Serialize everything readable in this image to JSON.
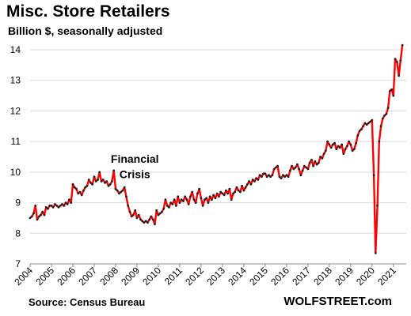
{
  "header": {
    "title": "Misc. Store Retailers",
    "subtitle": "Billion $, seasonally adjusted"
  },
  "footer": {
    "source": "Source: Census Bureau",
    "brand": "WOLFSTREET.com"
  },
  "colors": {
    "line": "#ff0000",
    "marker": "#222222",
    "grid": "#d9d9d9",
    "axis": "#888888"
  },
  "chart_data": {
    "type": "line",
    "title": "Misc. Store Retailers",
    "ylabel": "Billion $, seasonally adjusted",
    "xlabel": "",
    "ylim": [
      7,
      14
    ],
    "yticks": [
      7,
      8,
      9,
      10,
      11,
      12,
      13,
      14
    ],
    "xlim": [
      2004,
      2021.6
    ],
    "xticks": [
      "2004",
      "2005",
      "2006",
      "2007",
      "2008",
      "2009",
      "2010",
      "2011",
      "2012",
      "2013",
      "2014",
      "2015",
      "2016",
      "2017",
      "2018",
      "2019",
      "2020",
      "2021"
    ],
    "grid": "horizontal",
    "annotations": [
      {
        "text": "Financial",
        "x": 2008.9,
        "y": 10.3
      },
      {
        "text": "Crisis",
        "x": 2008.9,
        "y": 9.8
      }
    ],
    "series": [
      {
        "x": [
          2004.0,
          2004.083,
          2004.167,
          2004.25,
          2004.333,
          2004.417,
          2004.5,
          2004.583,
          2004.667,
          2004.75,
          2004.833,
          2004.917,
          2005.0,
          2005.083,
          2005.167,
          2005.25,
          2005.333,
          2005.417,
          2005.5,
          2005.583,
          2005.667,
          2005.75,
          2005.833,
          2005.917,
          2006.0,
          2006.083,
          2006.167,
          2006.25,
          2006.333,
          2006.417,
          2006.5,
          2006.583,
          2006.667,
          2006.75,
          2006.833,
          2006.917,
          2007.0,
          2007.083,
          2007.167,
          2007.25,
          2007.333,
          2007.417,
          2007.5,
          2007.583,
          2007.667,
          2007.75,
          2007.833,
          2007.917,
          2008.0,
          2008.083,
          2008.167,
          2008.25,
          2008.333,
          2008.417,
          2008.5,
          2008.583,
          2008.667,
          2008.75,
          2008.833,
          2008.917,
          2009.0,
          2009.083,
          2009.167,
          2009.25,
          2009.333,
          2009.417,
          2009.5,
          2009.583,
          2009.667,
          2009.75,
          2009.833,
          2009.917,
          2010.0,
          2010.083,
          2010.167,
          2010.25,
          2010.333,
          2010.417,
          2010.5,
          2010.583,
          2010.667,
          2010.75,
          2010.833,
          2010.917,
          2011.0,
          2011.083,
          2011.167,
          2011.25,
          2011.333,
          2011.417,
          2011.5,
          2011.583,
          2011.667,
          2011.75,
          2011.833,
          2011.917,
          2012.0,
          2012.083,
          2012.167,
          2012.25,
          2012.333,
          2012.417,
          2012.5,
          2012.583,
          2012.667,
          2012.75,
          2012.833,
          2012.917,
          2013.0,
          2013.083,
          2013.167,
          2013.25,
          2013.333,
          2013.417,
          2013.5,
          2013.583,
          2013.667,
          2013.75,
          2013.833,
          2013.917,
          2014.0,
          2014.083,
          2014.167,
          2014.25,
          2014.333,
          2014.417,
          2014.5,
          2014.583,
          2014.667,
          2014.75,
          2014.833,
          2014.917,
          2015.0,
          2015.083,
          2015.167,
          2015.25,
          2015.333,
          2015.417,
          2015.5,
          2015.583,
          2015.667,
          2015.75,
          2015.833,
          2015.917,
          2016.0,
          2016.083,
          2016.167,
          2016.25,
          2016.333,
          2016.417,
          2016.5,
          2016.583,
          2016.667,
          2016.75,
          2016.833,
          2016.917,
          2017.0,
          2017.083,
          2017.167,
          2017.25,
          2017.333,
          2017.417,
          2017.5,
          2017.583,
          2017.667,
          2017.75,
          2017.833,
          2017.917,
          2018.0,
          2018.083,
          2018.167,
          2018.25,
          2018.333,
          2018.417,
          2018.5,
          2018.583,
          2018.667,
          2018.75,
          2018.833,
          2018.917,
          2019.0,
          2019.083,
          2019.167,
          2019.25,
          2019.333,
          2019.417,
          2019.5,
          2019.583,
          2019.667,
          2019.75,
          2019.833,
          2019.917,
          2020.0,
          2020.083,
          2020.167,
          2020.25,
          2020.333,
          2020.417,
          2020.5,
          2020.583,
          2020.667,
          2020.75,
          2020.833,
          2020.917,
          2021.0,
          2021.083,
          2021.167,
          2021.25,
          2021.333,
          2021.417
        ],
        "y": [
          8.5,
          8.55,
          8.65,
          8.9,
          8.45,
          8.55,
          8.6,
          8.7,
          8.6,
          8.85,
          8.8,
          8.9,
          8.9,
          8.85,
          8.95,
          8.9,
          8.85,
          8.9,
          8.95,
          8.9,
          9.0,
          8.95,
          9.1,
          9.0,
          9.6,
          9.5,
          9.45,
          9.3,
          9.35,
          9.25,
          9.4,
          9.5,
          9.55,
          9.75,
          9.65,
          9.6,
          9.85,
          9.7,
          9.75,
          10.0,
          9.7,
          9.75,
          9.65,
          9.7,
          9.55,
          9.6,
          9.7,
          10.05,
          9.45,
          9.4,
          9.3,
          9.35,
          9.4,
          9.5,
          9.2,
          8.9,
          8.7,
          8.55,
          8.6,
          8.75,
          8.5,
          8.6,
          8.45,
          8.4,
          8.35,
          8.4,
          8.35,
          8.45,
          8.55,
          8.45,
          8.3,
          8.75,
          8.6,
          8.65,
          8.7,
          8.8,
          9.1,
          8.9,
          8.85,
          9.0,
          8.95,
          9.1,
          8.9,
          9.2,
          9.0,
          9.1,
          9.05,
          9.2,
          9.1,
          8.95,
          9.2,
          9.35,
          9.1,
          9.0,
          9.3,
          9.45,
          9.15,
          8.9,
          9.1,
          9.15,
          9.0,
          9.2,
          9.1,
          9.25,
          9.15,
          9.3,
          9.2,
          9.35,
          9.3,
          9.25,
          9.4,
          9.3,
          9.45,
          9.1,
          9.3,
          9.35,
          9.5,
          9.4,
          9.35,
          9.55,
          9.4,
          9.5,
          9.6,
          9.7,
          9.6,
          9.75,
          9.7,
          9.8,
          9.75,
          9.9,
          9.85,
          9.95,
          9.95,
          9.85,
          9.9,
          9.85,
          9.9,
          10.1,
          10.15,
          10.2,
          9.85,
          9.8,
          9.9,
          9.85,
          9.9,
          9.85,
          10.05,
          10.2,
          10.1,
          10.15,
          10.25,
          10.1,
          9.9,
          10.05,
          10.2,
          10.15,
          10.1,
          10.3,
          10.4,
          10.2,
          10.35,
          10.25,
          10.3,
          10.5,
          10.45,
          10.6,
          10.7,
          11.0,
          10.9,
          10.8,
          10.9,
          10.95,
          10.75,
          10.85,
          10.8,
          10.9,
          10.6,
          10.75,
          10.85,
          11.0,
          10.9,
          10.7,
          10.75,
          10.95,
          11.2,
          11.35,
          11.4,
          11.5,
          11.6,
          11.55,
          11.6,
          11.65,
          11.7,
          9.9,
          7.35,
          8.9,
          11.0,
          11.5,
          11.75,
          11.85,
          11.9,
          12.1,
          12.65,
          12.7,
          12.5,
          13.7,
          13.6,
          13.15,
          13.65,
          14.15
        ]
      }
    ]
  }
}
